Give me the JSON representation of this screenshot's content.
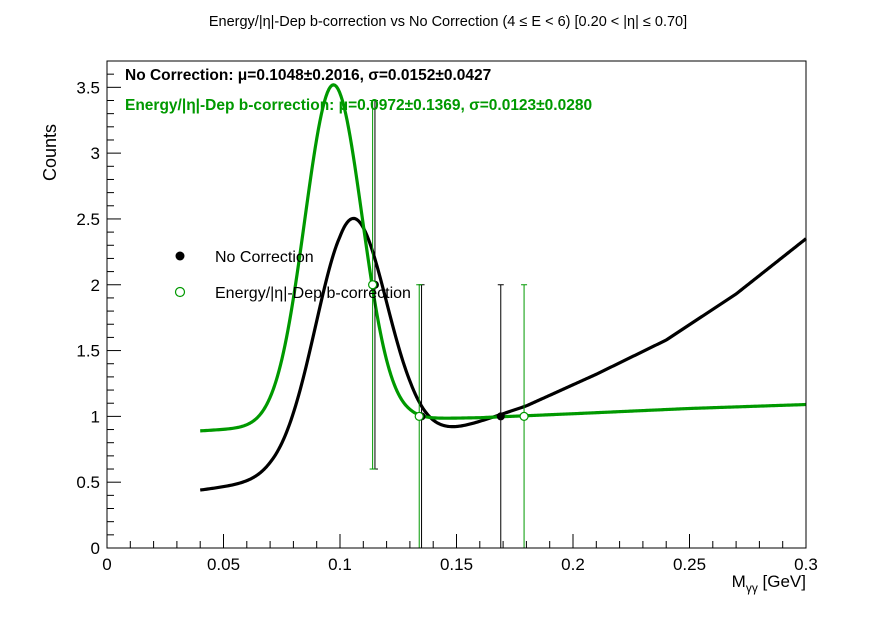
{
  "chart_data": {
    "type": "scatter",
    "title": "Energy/|η|-Dep b-correction vs No Correction   (4 ≤ E < 6)   [0.20 < |η| ≤ 0.70]",
    "xlabel": "Mγγ [GeV]",
    "xlabel_main": "M",
    "xlabel_sub": "γγ",
    "xlabel_unit": " [GeV]",
    "ylabel": "Counts",
    "xlim": [
      0,
      0.3
    ],
    "ylim": [
      0,
      3.7
    ],
    "x_ticks": [
      0,
      0.05,
      0.1,
      0.15,
      0.2,
      0.25,
      0.3
    ],
    "x_tick_labels": [
      "0",
      "0.05",
      "0.1",
      "0.15",
      "0.2",
      "0.25",
      "0.3"
    ],
    "y_ticks": [
      0,
      0.5,
      1,
      1.5,
      2,
      2.5,
      3,
      3.5
    ],
    "y_tick_labels": [
      "0",
      "0.5",
      "1",
      "1.5",
      "2",
      "2.5",
      "3",
      "3.5"
    ],
    "grid": false,
    "legend_position": "center-left",
    "stats": [
      {
        "text": "No Correction:  μ=0.1048±0.2016,  σ=0.0152±0.0427",
        "color": "#000000"
      },
      {
        "text": "Energy/|η|-Dep b-correction:  μ=0.0972±0.1369,  σ=0.0123±0.0280",
        "color": "#009900"
      }
    ],
    "series": [
      {
        "name": "No Correction",
        "color": "#000000",
        "marker": "filled-circle",
        "points": [
          {
            "x": 0.115,
            "y": 2.0,
            "ylo": 0.6,
            "yhi": 3.4
          },
          {
            "x": 0.135,
            "y": 1.0,
            "ylo": 0.0,
            "yhi": 2.0
          },
          {
            "x": 0.169,
            "y": 1.0,
            "ylo": 0.0,
            "yhi": 2.0
          }
        ],
        "fit": {
          "A": 1.93,
          "mu": 0.1048,
          "sigma": 0.0152,
          "bg": [
            [
              0.04,
              0.44
            ],
            [
              0.07,
              0.51
            ],
            [
              0.1,
              0.53
            ],
            [
              0.13,
              0.78
            ],
            [
              0.15,
              0.9
            ],
            [
              0.18,
              1.08
            ],
            [
              0.21,
              1.32
            ],
            [
              0.24,
              1.58
            ],
            [
              0.27,
              1.93
            ],
            [
              0.3,
              2.35
            ]
          ]
        }
      },
      {
        "name": "Energy/|η|-Dep b-correction",
        "color": "#009900",
        "marker": "open-circle",
        "points": [
          {
            "x": 0.114,
            "y": 2.0,
            "ylo": 0.6,
            "yhi": 3.4
          },
          {
            "x": 0.134,
            "y": 1.0,
            "ylo": 0.0,
            "yhi": 2.0
          },
          {
            "x": 0.179,
            "y": 1.0,
            "ylo": 0.0,
            "yhi": 2.0
          }
        ],
        "fit": {
          "A": 2.59,
          "mu": 0.0972,
          "sigma": 0.0123,
          "bg": [
            [
              0.04,
              0.89
            ],
            [
              0.07,
              0.92
            ],
            [
              0.1,
              0.93
            ],
            [
              0.13,
              0.98
            ],
            [
              0.16,
              0.99
            ],
            [
              0.2,
              1.02
            ],
            [
              0.25,
              1.06
            ],
            [
              0.3,
              1.09
            ]
          ]
        }
      }
    ]
  }
}
